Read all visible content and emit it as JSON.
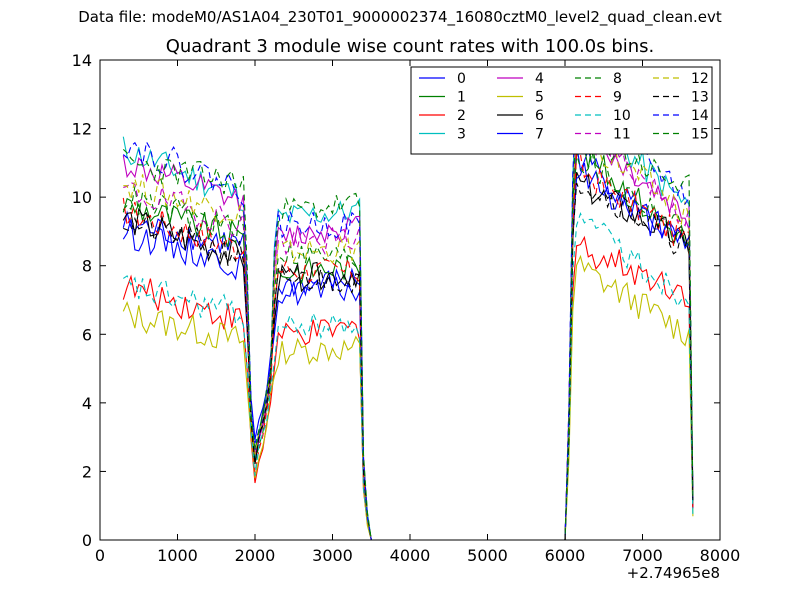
{
  "suptitle": "Data file: modeM0/AS1A04_230T01_9000002374_16080cztM0_level2_quad_clean.evt",
  "title": "Quadrant 3 module wise count rates with 100.0s bins.",
  "xoffset_label": "+2.74965e8",
  "chart_data": {
    "type": "line",
    "xlim": [
      0,
      8000
    ],
    "ylim": [
      0,
      14
    ],
    "xticks": [
      0,
      1000,
      2000,
      3000,
      4000,
      5000,
      6000,
      7000,
      8000
    ],
    "yticks": [
      0,
      2,
      4,
      6,
      8,
      10,
      12,
      14
    ],
    "grid": false,
    "legend_position": "top-right",
    "legend_columns": 4,
    "series": [
      {
        "name": "0",
        "color": "#0000ff",
        "dash": "solid",
        "base": 9.2,
        "y1": 8.6,
        "y2": 2.8,
        "y3": 7.4,
        "y4": 7.6,
        "y5": 11.3,
        "y6": 8.4,
        "seed": 1
      },
      {
        "name": "1",
        "color": "#008000",
        "dash": "solid",
        "base": 9.8,
        "y1": 8.8,
        "y2": 2.6,
        "y3": 7.8,
        "y4": 8.0,
        "y5": 11.5,
        "y6": 8.6,
        "seed": 2
      },
      {
        "name": "2",
        "color": "#ff0000",
        "dash": "solid",
        "base": 7.4,
        "y1": 6.4,
        "y2": 1.7,
        "y3": 5.9,
        "y4": 6.2,
        "y5": 8.6,
        "y6": 7.2,
        "seed": 3
      },
      {
        "name": "3",
        "color": "#00bfbf",
        "dash": "solid",
        "base": 11.4,
        "y1": 10.0,
        "y2": 2.5,
        "y3": 9.4,
        "y4": 9.6,
        "y5": 12.6,
        "y6": 9.7,
        "seed": 4
      },
      {
        "name": "4",
        "color": "#bf00bf",
        "dash": "solid",
        "base": 11.0,
        "y1": 9.8,
        "y2": 2.4,
        "y3": 8.8,
        "y4": 9.2,
        "y5": 12.0,
        "y6": 9.4,
        "seed": 5
      },
      {
        "name": "5",
        "color": "#bfbf00",
        "dash": "solid",
        "base": 6.6,
        "y1": 5.8,
        "y2": 1.8,
        "y3": 5.5,
        "y4": 5.6,
        "y5": 8.0,
        "y6": 6.0,
        "seed": 6
      },
      {
        "name": "6",
        "color": "#000000",
        "dash": "solid",
        "base": 9.4,
        "y1": 8.2,
        "y2": 2.3,
        "y3": 7.6,
        "y4": 7.8,
        "y5": 10.4,
        "y6": 8.6,
        "seed": 7
      },
      {
        "name": "7",
        "color": "#0000ff",
        "dash": "solid",
        "base": 9.0,
        "y1": 8.0,
        "y2": 2.5,
        "y3": 7.2,
        "y4": 7.3,
        "y5": 10.8,
        "y6": 8.5,
        "seed": 8
      },
      {
        "name": "8",
        "color": "#008000",
        "dash": "dashed",
        "base": 10.0,
        "y1": 9.0,
        "y2": 2.2,
        "y3": 8.4,
        "y4": 8.2,
        "y5": 11.2,
        "y6": 8.9,
        "seed": 9
      },
      {
        "name": "9",
        "color": "#ff0000",
        "dash": "dashed",
        "base": 9.6,
        "y1": 8.5,
        "y2": 2.0,
        "y3": 7.9,
        "y4": 7.8,
        "y5": 10.9,
        "y6": 8.7,
        "seed": 10
      },
      {
        "name": "10",
        "color": "#00bfbf",
        "dash": "dashed",
        "base": 7.4,
        "y1": 6.6,
        "y2": 2.0,
        "y3": 6.2,
        "y4": 6.3,
        "y5": 9.4,
        "y6": 7.0,
        "seed": 11
      },
      {
        "name": "11",
        "color": "#bf00bf",
        "dash": "dashed",
        "base": 10.2,
        "y1": 9.2,
        "y2": 2.4,
        "y3": 8.6,
        "y4": 8.8,
        "y5": 12.2,
        "y6": 9.4,
        "seed": 12
      },
      {
        "name": "12",
        "color": "#bfbf00",
        "dash": "dashed",
        "base": 10.4,
        "y1": 9.5,
        "y2": 2.5,
        "y3": 8.4,
        "y4": 8.5,
        "y5": 11.9,
        "y6": 9.5,
        "seed": 13
      },
      {
        "name": "13",
        "color": "#000000",
        "dash": "dashed",
        "base": 9.3,
        "y1": 8.3,
        "y2": 2.3,
        "y3": 7.6,
        "y4": 7.6,
        "y5": 10.6,
        "y6": 8.5,
        "seed": 14
      },
      {
        "name": "14",
        "color": "#0000ff",
        "dash": "dashed",
        "base": 11.6,
        "y1": 10.2,
        "y2": 2.7,
        "y3": 9.2,
        "y4": 9.2,
        "y5": 12.8,
        "y6": 10.0,
        "seed": 15
      },
      {
        "name": "15",
        "color": "#008000",
        "dash": "dashed",
        "base": 11.0,
        "y1": 10.4,
        "y2": 2.6,
        "y3": 9.6,
        "y4": 9.8,
        "y5": 12.0,
        "y6": 10.2,
        "seed": 16
      }
    ]
  }
}
